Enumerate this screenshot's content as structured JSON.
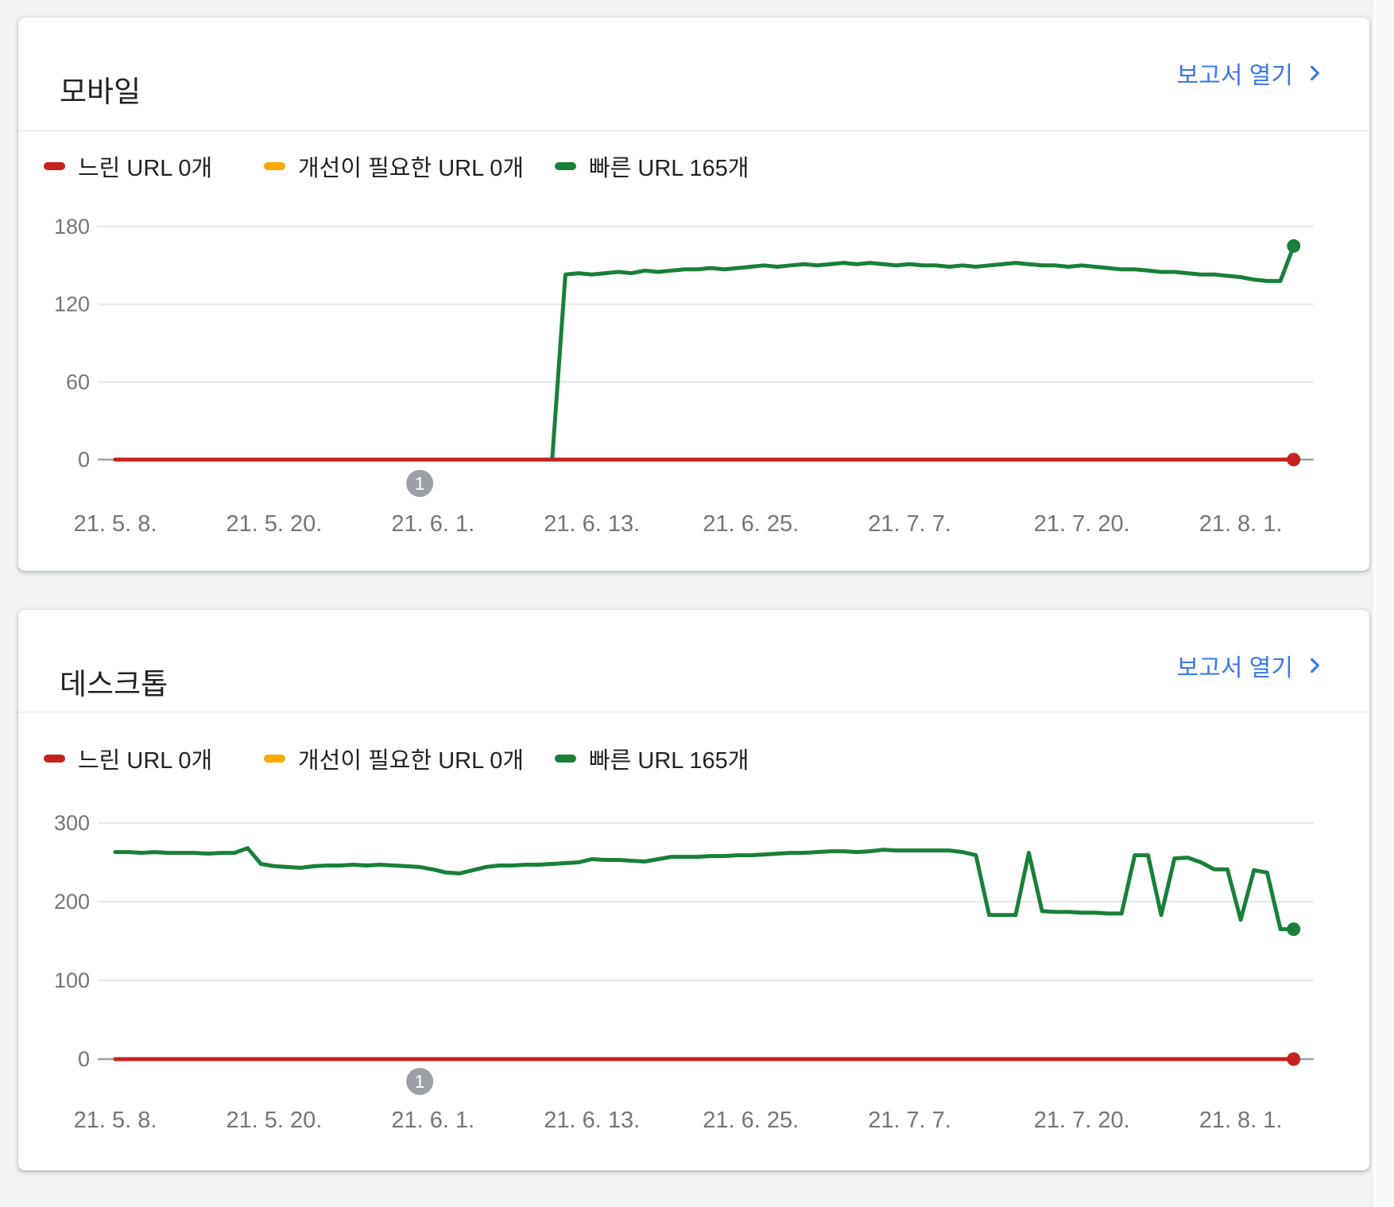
{
  "page": {
    "background_color": "#f1f3f4"
  },
  "cards": [
    {
      "title": "모바일",
      "report_link_label": "보고서 열기",
      "legend": [
        {
          "label": "느린 URL 0개",
          "color": "#c5221f"
        },
        {
          "label": "개선이 필요한 URL 0개",
          "color": "#f9ab00"
        },
        {
          "label": "빠른 URL 165개",
          "color": "#188038"
        }
      ]
    },
    {
      "title": "데스크톱",
      "report_link_label": "보고서 열기",
      "legend": [
        {
          "label": "느린 URL 0개",
          "color": "#c5221f"
        },
        {
          "label": "개선이 필요한 URL 0개",
          "color": "#f9ab00"
        },
        {
          "label": "빠른 URL 165개",
          "color": "#188038"
        }
      ]
    }
  ],
  "chart_data": [
    {
      "type": "line",
      "title": "모바일",
      "legend_position": "top",
      "x_tick_labels": [
        "21. 5. 8.",
        "21. 5. 20.",
        "21. 6. 1.",
        "21. 6. 13.",
        "21. 6. 25.",
        "21. 7. 7.",
        "21. 7. 20.",
        "21. 8. 1."
      ],
      "x_tick_days": [
        0,
        12,
        24,
        36,
        48,
        60,
        73,
        85
      ],
      "x_range_days": [
        0,
        89
      ],
      "ylim": [
        0,
        180
      ],
      "yticks": [
        0,
        60,
        120,
        180
      ],
      "grid": true,
      "annotation": {
        "label": "1",
        "day": 23,
        "color": "#9aa0a6"
      },
      "series": [
        {
          "name": "느린 URL 0개",
          "color": "#c5221f",
          "end_dot": true,
          "values_const": 0
        },
        {
          "name": "개선이 필요한 URL 0개",
          "color": "#f9ab00",
          "end_dot": false,
          "values_const": 0
        },
        {
          "name": "빠른 URL 165개",
          "color": "#188038",
          "end_dot": true,
          "values_by_day": [
            0,
            0,
            0,
            0,
            0,
            0,
            0,
            0,
            0,
            0,
            0,
            0,
            0,
            0,
            0,
            0,
            0,
            0,
            0,
            0,
            0,
            0,
            0,
            0,
            0,
            0,
            0,
            0,
            0,
            0,
            0,
            0,
            0,
            0,
            143,
            144,
            143,
            144,
            145,
            144,
            146,
            145,
            146,
            147,
            147,
            148,
            147,
            148,
            149,
            150,
            149,
            150,
            151,
            150,
            151,
            152,
            151,
            152,
            151,
            150,
            151,
            150,
            150,
            149,
            150,
            149,
            150,
            151,
            152,
            151,
            150,
            150,
            149,
            150,
            149,
            148,
            147,
            147,
            146,
            145,
            145,
            144,
            143,
            143,
            142,
            141,
            139,
            138,
            138,
            165
          ]
        }
      ]
    },
    {
      "type": "line",
      "title": "데스크톱",
      "legend_position": "top",
      "x_tick_labels": [
        "21. 5. 8.",
        "21. 5. 20.",
        "21. 6. 1.",
        "21. 6. 13.",
        "21. 6. 25.",
        "21. 7. 7.",
        "21. 7. 20.",
        "21. 8. 1."
      ],
      "x_tick_days": [
        0,
        12,
        24,
        36,
        48,
        60,
        73,
        85
      ],
      "x_range_days": [
        0,
        89
      ],
      "ylim": [
        0,
        300
      ],
      "yticks": [
        0,
        100,
        200,
        300
      ],
      "grid": true,
      "annotation": {
        "label": "1",
        "day": 23,
        "color": "#9aa0a6"
      },
      "series": [
        {
          "name": "느린 URL 0개",
          "color": "#c5221f",
          "end_dot": true,
          "values_const": 0
        },
        {
          "name": "개선이 필요한 URL 0개",
          "color": "#f9ab00",
          "end_dot": false,
          "values_const": 0
        },
        {
          "name": "빠른 URL 165개",
          "color": "#188038",
          "end_dot": true,
          "values_by_day": [
            263,
            263,
            262,
            263,
            262,
            262,
            262,
            261,
            262,
            262,
            268,
            248,
            245,
            244,
            243,
            245,
            246,
            246,
            247,
            246,
            247,
            246,
            245,
            244,
            241,
            237,
            236,
            240,
            244,
            246,
            246,
            247,
            247,
            248,
            249,
            250,
            254,
            253,
            253,
            252,
            251,
            254,
            257,
            257,
            257,
            258,
            258,
            259,
            259,
            260,
            261,
            262,
            262,
            263,
            264,
            264,
            263,
            264,
            266,
            265,
            265,
            265,
            265,
            265,
            263,
            259,
            183,
            183,
            183,
            262,
            188,
            187,
            187,
            186,
            186,
            185,
            185,
            259,
            259,
            183,
            255,
            256,
            250,
            241,
            241,
            177,
            240,
            237,
            165,
            165
          ]
        }
      ]
    }
  ]
}
